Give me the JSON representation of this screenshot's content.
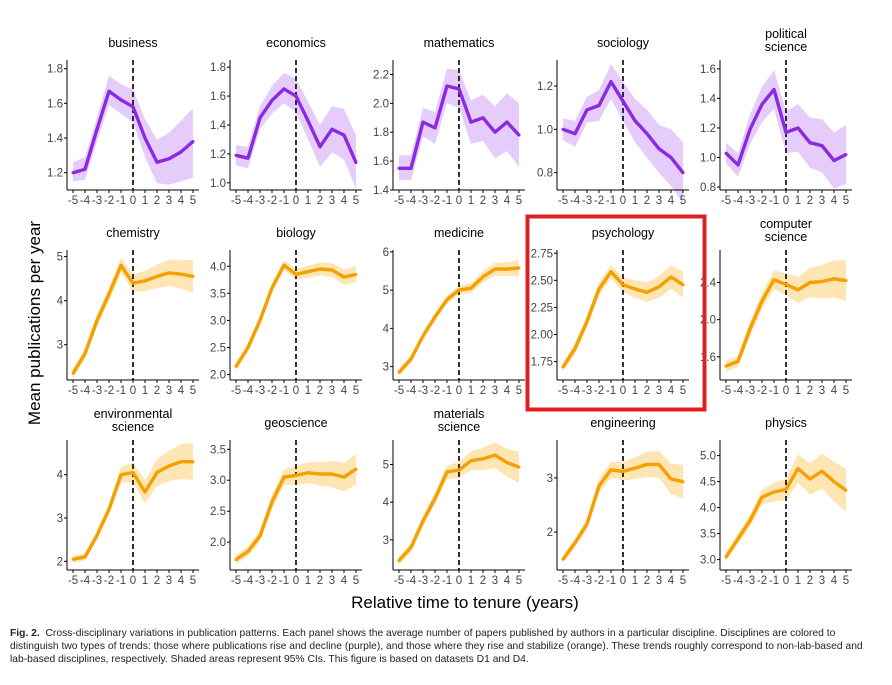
{
  "figure": {
    "ylabel": "Mean publications per year",
    "xlabel": "Relative time to tenure (years)",
    "highlight_panel": "psychology"
  },
  "colors": {
    "purple_line": "#8A2BE2",
    "purple_band": "#E6CCFA",
    "orange_line": "#F5A000",
    "orange_band": "#FDE6B4",
    "highlight_box": "#E02020"
  },
  "caption": {
    "label": "Fig. 2.",
    "text": "Cross-disciplinary variations in publication patterns. Each panel shows the average number of papers published by authors in a particular discipline. Disciplines are colored to distinguish two types of trends: those where publications rise and decline (purple), and those where they rise and stabilize (orange). These trends roughly correspond to non-lab-based and lab-based disciplines, respectively. Shaded areas represent 95% CIs. This figure is based on datasets D1 and D4."
  },
  "chart_data": [
    {
      "type": "line",
      "title": "business",
      "color": "purple",
      "ylim": [
        1.1,
        1.85
      ],
      "yticks": [
        "1.2",
        "1.4",
        "1.6",
        "1.8"
      ],
      "ytick_values": [
        1.2,
        1.4,
        1.6,
        1.8
      ],
      "x": [
        -5,
        -4,
        -3,
        -2,
        -1,
        0,
        1,
        2,
        3,
        4,
        5
      ],
      "values": [
        1.2,
        1.22,
        1.45,
        1.67,
        1.62,
        1.58,
        1.4,
        1.26,
        1.28,
        1.32,
        1.38
      ],
      "ci_lower": [
        1.15,
        1.16,
        1.38,
        1.59,
        1.54,
        1.49,
        1.29,
        1.14,
        1.13,
        1.15,
        1.17
      ],
      "ci_upper": [
        1.26,
        1.29,
        1.52,
        1.76,
        1.71,
        1.68,
        1.51,
        1.39,
        1.43,
        1.5,
        1.57
      ]
    },
    {
      "type": "line",
      "title": "economics",
      "color": "purple",
      "ylim": [
        0.95,
        1.85
      ],
      "yticks": [
        "1.0",
        "1.2",
        "1.4",
        "1.6",
        "1.8"
      ],
      "ytick_values": [
        1.0,
        1.2,
        1.4,
        1.6,
        1.8
      ],
      "x": [
        -5,
        -4,
        -3,
        -2,
        -1,
        0,
        1,
        2,
        3,
        4,
        5
      ],
      "values": [
        1.19,
        1.17,
        1.45,
        1.57,
        1.65,
        1.6,
        1.43,
        1.25,
        1.37,
        1.33,
        1.14
      ],
      "ci_lower": [
        1.12,
        1.1,
        1.37,
        1.48,
        1.55,
        1.49,
        1.3,
        1.11,
        1.21,
        1.16,
        0.96
      ],
      "ci_upper": [
        1.26,
        1.25,
        1.53,
        1.67,
        1.76,
        1.72,
        1.56,
        1.4,
        1.53,
        1.51,
        1.33
      ]
    },
    {
      "type": "line",
      "title": "mathematics",
      "color": "purple",
      "ylim": [
        1.4,
        2.3
      ],
      "yticks": [
        "1.4",
        "1.6",
        "1.8",
        "2.0",
        "2.2"
      ],
      "ytick_values": [
        1.4,
        1.6,
        1.8,
        2.0,
        2.2
      ],
      "x": [
        -5,
        -4,
        -3,
        -2,
        -1,
        0,
        1,
        2,
        3,
        4,
        5
      ],
      "values": [
        1.55,
        1.55,
        1.87,
        1.83,
        2.12,
        2.1,
        1.87,
        1.9,
        1.8,
        1.87,
        1.78
      ],
      "ci_lower": [
        1.47,
        1.47,
        1.77,
        1.72,
        2.0,
        1.97,
        1.72,
        1.74,
        1.62,
        1.67,
        1.56
      ],
      "ci_upper": [
        1.64,
        1.64,
        1.97,
        1.94,
        2.24,
        2.23,
        2.02,
        2.06,
        1.98,
        2.07,
        2.0
      ]
    },
    {
      "type": "line",
      "title": "sociology",
      "color": "purple",
      "ylim": [
        0.72,
        1.32
      ],
      "yticks": [
        "0.8",
        "1.0",
        "1.2"
      ],
      "ytick_values": [
        0.8,
        1.0,
        1.2
      ],
      "x": [
        -5,
        -4,
        -3,
        -2,
        -1,
        0,
        1,
        2,
        3,
        4,
        5
      ],
      "values": [
        1.0,
        0.98,
        1.09,
        1.11,
        1.22,
        1.13,
        1.04,
        0.98,
        0.91,
        0.87,
        0.8
      ],
      "ci_lower": [
        0.95,
        0.92,
        1.03,
        1.04,
        1.14,
        1.04,
        0.94,
        0.87,
        0.8,
        0.74,
        0.66
      ],
      "ci_upper": [
        1.05,
        1.04,
        1.15,
        1.18,
        1.3,
        1.22,
        1.14,
        1.09,
        1.02,
        1.0,
        0.94
      ]
    },
    {
      "type": "line",
      "title": "political science",
      "title_lines": [
        "political",
        "science"
      ],
      "color": "purple",
      "ylim": [
        0.78,
        1.66
      ],
      "yticks": [
        "0.8",
        "1.0",
        "1.2",
        "1.4",
        "1.6"
      ],
      "ytick_values": [
        0.8,
        1.0,
        1.2,
        1.4,
        1.6
      ],
      "x": [
        -5,
        -4,
        -3,
        -2,
        -1,
        0,
        1,
        2,
        3,
        4,
        5
      ],
      "values": [
        1.03,
        0.95,
        1.19,
        1.36,
        1.46,
        1.17,
        1.2,
        1.1,
        1.08,
        0.98,
        1.02
      ],
      "ci_lower": [
        0.96,
        0.87,
        1.09,
        1.24,
        1.33,
        1.03,
        1.04,
        0.93,
        0.9,
        0.79,
        0.82
      ],
      "ci_upper": [
        1.1,
        1.03,
        1.29,
        1.48,
        1.59,
        1.31,
        1.36,
        1.27,
        1.26,
        1.17,
        1.22
      ]
    },
    {
      "type": "line",
      "title": "chemistry",
      "color": "orange",
      "ylim": [
        2.2,
        5.15
      ],
      "yticks": [
        "3",
        "4",
        "5"
      ],
      "ytick_values": [
        3,
        4,
        5
      ],
      "x": [
        -5,
        -4,
        -3,
        -2,
        -1,
        0,
        1,
        2,
        3,
        4,
        5
      ],
      "values": [
        2.35,
        2.8,
        3.55,
        4.15,
        4.8,
        4.4,
        4.45,
        4.55,
        4.63,
        4.6,
        4.55
      ],
      "ci_lower": [
        2.25,
        2.68,
        3.42,
        4.0,
        4.63,
        4.2,
        4.22,
        4.28,
        4.33,
        4.27,
        4.18
      ],
      "ci_upper": [
        2.45,
        2.92,
        3.68,
        4.3,
        4.97,
        4.6,
        4.68,
        4.82,
        4.93,
        4.93,
        4.92
      ]
    },
    {
      "type": "line",
      "title": "biology",
      "color": "orange",
      "ylim": [
        1.9,
        4.3
      ],
      "yticks": [
        "2.0",
        "2.5",
        "3.0",
        "3.5",
        "4.0"
      ],
      "ytick_values": [
        2.0,
        2.5,
        3.0,
        3.5,
        4.0
      ],
      "x": [
        -5,
        -4,
        -3,
        -2,
        -1,
        0,
        1,
        2,
        3,
        4,
        5
      ],
      "values": [
        2.15,
        2.5,
        3.0,
        3.6,
        4.02,
        3.85,
        3.9,
        3.95,
        3.93,
        3.8,
        3.85
      ],
      "ci_lower": [
        2.08,
        2.42,
        2.92,
        3.52,
        3.93,
        3.75,
        3.79,
        3.83,
        3.8,
        3.66,
        3.7
      ],
      "ci_upper": [
        2.22,
        2.58,
        3.08,
        3.68,
        4.11,
        3.95,
        4.01,
        4.07,
        4.06,
        3.94,
        4.0
      ]
    },
    {
      "type": "line",
      "title": "medicine",
      "color": "orange",
      "ylim": [
        2.65,
        6.05
      ],
      "yticks": [
        "3",
        "4",
        "5",
        "6"
      ],
      "ytick_values": [
        3,
        4,
        5,
        6
      ],
      "x": [
        -5,
        -4,
        -3,
        -2,
        -1,
        0,
        1,
        2,
        3,
        4,
        5
      ],
      "values": [
        2.85,
        3.2,
        3.8,
        4.3,
        4.75,
        5.0,
        5.05,
        5.35,
        5.55,
        5.55,
        5.58
      ],
      "ci_lower": [
        2.76,
        3.1,
        3.7,
        4.2,
        4.64,
        4.88,
        4.92,
        5.2,
        5.38,
        5.37,
        5.38
      ],
      "ci_upper": [
        2.94,
        3.3,
        3.9,
        4.4,
        4.86,
        5.12,
        5.18,
        5.5,
        5.72,
        5.73,
        5.78
      ]
    },
    {
      "type": "line",
      "title": "psychology",
      "color": "orange",
      "ylim": [
        1.58,
        2.78
      ],
      "yticks": [
        "1.75",
        "2.00",
        "2.25",
        "2.50",
        "2.75"
      ],
      "ytick_values": [
        1.75,
        2.0,
        2.25,
        2.5,
        2.75
      ],
      "x": [
        -5,
        -4,
        -3,
        -2,
        -1,
        0,
        1,
        2,
        3,
        4,
        5
      ],
      "values": [
        1.7,
        1.87,
        2.12,
        2.42,
        2.58,
        2.46,
        2.42,
        2.39,
        2.44,
        2.53,
        2.46
      ],
      "ci_lower": [
        1.66,
        1.82,
        2.07,
        2.36,
        2.52,
        2.39,
        2.34,
        2.3,
        2.34,
        2.42,
        2.34
      ],
      "ci_upper": [
        1.74,
        1.92,
        2.17,
        2.48,
        2.64,
        2.53,
        2.5,
        2.48,
        2.54,
        2.64,
        2.58
      ]
    },
    {
      "type": "line",
      "title": "computer science",
      "title_lines": [
        "computer",
        "science"
      ],
      "color": "orange",
      "ylim": [
        1.35,
        2.75
      ],
      "yticks": [
        "1.6",
        "2.0",
        "2.4"
      ],
      "ytick_values": [
        1.6,
        2.0,
        2.4
      ],
      "x": [
        -5,
        -4,
        -3,
        -2,
        -1,
        0,
        1,
        2,
        3,
        4,
        5
      ],
      "values": [
        1.5,
        1.55,
        1.9,
        2.2,
        2.43,
        2.38,
        2.32,
        2.4,
        2.41,
        2.44,
        2.42
      ],
      "ci_lower": [
        1.44,
        1.49,
        1.82,
        2.11,
        2.33,
        2.26,
        2.18,
        2.24,
        2.23,
        2.24,
        2.2
      ],
      "ci_upper": [
        1.56,
        1.61,
        1.98,
        2.29,
        2.53,
        2.5,
        2.46,
        2.56,
        2.59,
        2.64,
        2.64
      ]
    },
    {
      "type": "line",
      "title": "environmental science",
      "title_lines": [
        "environmental",
        "science"
      ],
      "color": "orange",
      "ylim": [
        1.8,
        4.8
      ],
      "yticks": [
        "2",
        "3",
        "4"
      ],
      "ytick_values": [
        2,
        3,
        4
      ],
      "x": [
        -5,
        -4,
        -3,
        -2,
        -1,
        0,
        1,
        2,
        3,
        4,
        5
      ],
      "values": [
        2.05,
        2.1,
        2.6,
        3.2,
        4.0,
        4.05,
        3.6,
        4.05,
        4.2,
        4.3,
        4.3
      ],
      "ci_lower": [
        1.97,
        2.02,
        2.5,
        3.08,
        3.82,
        3.82,
        3.33,
        3.74,
        3.85,
        3.9,
        3.87
      ],
      "ci_upper": [
        2.13,
        2.18,
        2.7,
        3.32,
        4.18,
        4.28,
        3.87,
        4.36,
        4.55,
        4.7,
        4.73
      ]
    },
    {
      "type": "line",
      "title": "geoscience",
      "color": "orange",
      "ylim": [
        1.55,
        3.65
      ],
      "yticks": [
        "2.0",
        "2.5",
        "3.0",
        "3.5"
      ],
      "ytick_values": [
        2.0,
        2.5,
        3.0,
        3.5
      ],
      "x": [
        -5,
        -4,
        -3,
        -2,
        -1,
        0,
        1,
        2,
        3,
        4,
        5
      ],
      "values": [
        1.72,
        1.85,
        2.1,
        2.65,
        3.05,
        3.08,
        3.12,
        3.1,
        3.1,
        3.05,
        3.18
      ],
      "ci_lower": [
        1.65,
        1.77,
        2.01,
        2.54,
        2.92,
        2.93,
        2.95,
        2.91,
        2.89,
        2.82,
        2.93
      ],
      "ci_upper": [
        1.79,
        1.93,
        2.19,
        2.76,
        3.18,
        3.23,
        3.29,
        3.29,
        3.31,
        3.28,
        3.43
      ]
    },
    {
      "type": "line",
      "title": "materials science",
      "title_lines": [
        "materials",
        "science"
      ],
      "color": "orange",
      "ylim": [
        2.2,
        5.65
      ],
      "yticks": [
        "3",
        "4",
        "5"
      ],
      "ytick_values": [
        3,
        4,
        5
      ],
      "x": [
        -5,
        -4,
        -3,
        -2,
        -1,
        0,
        1,
        2,
        3,
        4,
        5
      ],
      "values": [
        2.45,
        2.8,
        3.5,
        4.1,
        4.8,
        4.85,
        5.1,
        5.15,
        5.25,
        5.05,
        4.93
      ],
      "ci_lower": [
        2.35,
        2.68,
        3.36,
        3.95,
        4.62,
        4.64,
        4.85,
        4.85,
        4.91,
        4.68,
        4.52
      ],
      "ci_upper": [
        2.55,
        2.92,
        3.64,
        4.25,
        4.98,
        5.06,
        5.35,
        5.45,
        5.59,
        5.42,
        5.34
      ]
    },
    {
      "type": "line",
      "title": "engineering",
      "color": "orange",
      "ylim": [
        1.3,
        3.7
      ],
      "yticks": [
        "2",
        "3"
      ],
      "ytick_values": [
        2,
        3
      ],
      "x": [
        -5,
        -4,
        -3,
        -2,
        -1,
        0,
        1,
        2,
        3,
        4,
        5
      ],
      "values": [
        1.5,
        1.8,
        2.15,
        2.85,
        3.15,
        3.12,
        3.18,
        3.25,
        3.25,
        2.98,
        2.93
      ],
      "ci_lower": [
        1.43,
        1.72,
        2.05,
        2.72,
        3.0,
        2.95,
        2.98,
        3.02,
        3.0,
        2.7,
        2.62
      ],
      "ci_upper": [
        1.57,
        1.88,
        2.25,
        2.98,
        3.3,
        3.29,
        3.38,
        3.48,
        3.5,
        3.26,
        3.24
      ]
    },
    {
      "type": "line",
      "title": "physics",
      "color": "orange",
      "ylim": [
        2.8,
        5.3
      ],
      "yticks": [
        "3.0",
        "3.5",
        "4.0",
        "4.5",
        "5.0"
      ],
      "ytick_values": [
        3.0,
        3.5,
        4.0,
        4.5,
        5.0
      ],
      "x": [
        -5,
        -4,
        -3,
        -2,
        -1,
        0,
        1,
        2,
        3,
        4,
        5
      ],
      "values": [
        3.05,
        3.4,
        3.75,
        4.2,
        4.3,
        4.35,
        4.75,
        4.55,
        4.7,
        4.5,
        4.33
      ],
      "ci_lower": [
        2.97,
        3.3,
        3.63,
        4.06,
        4.12,
        4.14,
        4.48,
        4.25,
        4.36,
        4.12,
        3.92
      ],
      "ci_upper": [
        3.13,
        3.5,
        3.87,
        4.34,
        4.48,
        4.56,
        5.02,
        4.85,
        5.04,
        4.88,
        4.74
      ]
    }
  ]
}
